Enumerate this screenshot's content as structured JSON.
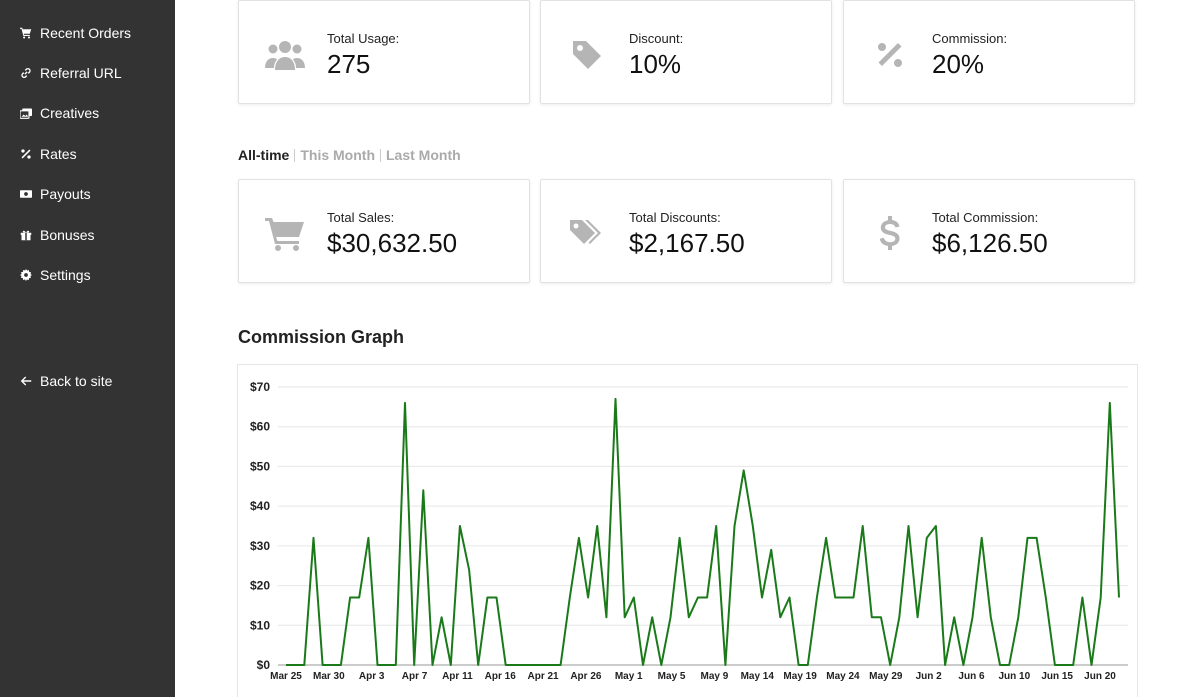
{
  "sidebar": {
    "items": [
      {
        "label": "Recent Orders",
        "icon": "cart-icon"
      },
      {
        "label": "Referral URL",
        "icon": "link-icon"
      },
      {
        "label": "Creatives",
        "icon": "images-icon"
      },
      {
        "label": "Rates",
        "icon": "percent-icon"
      },
      {
        "label": "Payouts",
        "icon": "money-icon"
      },
      {
        "label": "Bonuses",
        "icon": "gift-icon"
      },
      {
        "label": "Settings",
        "icon": "gear-icon"
      }
    ],
    "back": {
      "label": "Back to site",
      "icon": "arrow-left-icon"
    }
  },
  "top_cards": [
    {
      "label": "Total Usage:",
      "value": "275",
      "icon": "users-icon"
    },
    {
      "label": "Discount:",
      "value": "10%",
      "icon": "tag-icon"
    },
    {
      "label": "Commission:",
      "value": "20%",
      "icon": "percent-icon"
    }
  ],
  "tabs": [
    "All-time",
    "This Month",
    "Last Month"
  ],
  "active_tab": "All-time",
  "stat_cards": [
    {
      "label": "Total Sales:",
      "value": "$30,632.50",
      "icon": "cart-icon"
    },
    {
      "label": "Total Discounts:",
      "value": "$2,167.50",
      "icon": "tags-icon"
    },
    {
      "label": "Total Commission:",
      "value": "$6,126.50",
      "icon": "dollar-icon"
    }
  ],
  "graph_title": "Commission Graph",
  "colors": {
    "sidebar_bg": "#333333",
    "line": "#1a7a1a",
    "icon_gray": "#b5b5b5"
  },
  "chart_data": {
    "type": "line",
    "title": "",
    "xlabel": "",
    "ylabel": "",
    "y_tick_labels": [
      "$0",
      "$10",
      "$20",
      "$30",
      "$40",
      "$50",
      "$60",
      "$70"
    ],
    "ylim": [
      0,
      70
    ],
    "grid": true,
    "x_tick_labels": [
      "Mar 25",
      "Mar 30",
      "Apr 3",
      "Apr 7",
      "Apr 11",
      "Apr 16",
      "Apr 21",
      "Apr 26",
      "May 1",
      "May 5",
      "May 9",
      "May 14",
      "May 19",
      "May 24",
      "May 29",
      "Jun 2",
      "Jun 6",
      "Jun 10",
      "Jun 15",
      "Jun 20"
    ],
    "series": [
      {
        "color": "#1a7a1a",
        "values": [
          0,
          0,
          0,
          32,
          0,
          0,
          0,
          17,
          17,
          32,
          0,
          0,
          0,
          66,
          0,
          44,
          0,
          12,
          0,
          35,
          24,
          0,
          17,
          17,
          0,
          0,
          0,
          0,
          0,
          0,
          0,
          17,
          32,
          17,
          35,
          12,
          67,
          12,
          17,
          0,
          12,
          0,
          12,
          32,
          12,
          17,
          17,
          35,
          0,
          35,
          49,
          35,
          17,
          29,
          12,
          17,
          0,
          0,
          17,
          32,
          17,
          17,
          17,
          35,
          12,
          12,
          0,
          12,
          35,
          12,
          32,
          35,
          0,
          12,
          0,
          12,
          32,
          12,
          0,
          0,
          12,
          32,
          32,
          17,
          0,
          0,
          0,
          17,
          0,
          17,
          66,
          17
        ]
      }
    ]
  }
}
